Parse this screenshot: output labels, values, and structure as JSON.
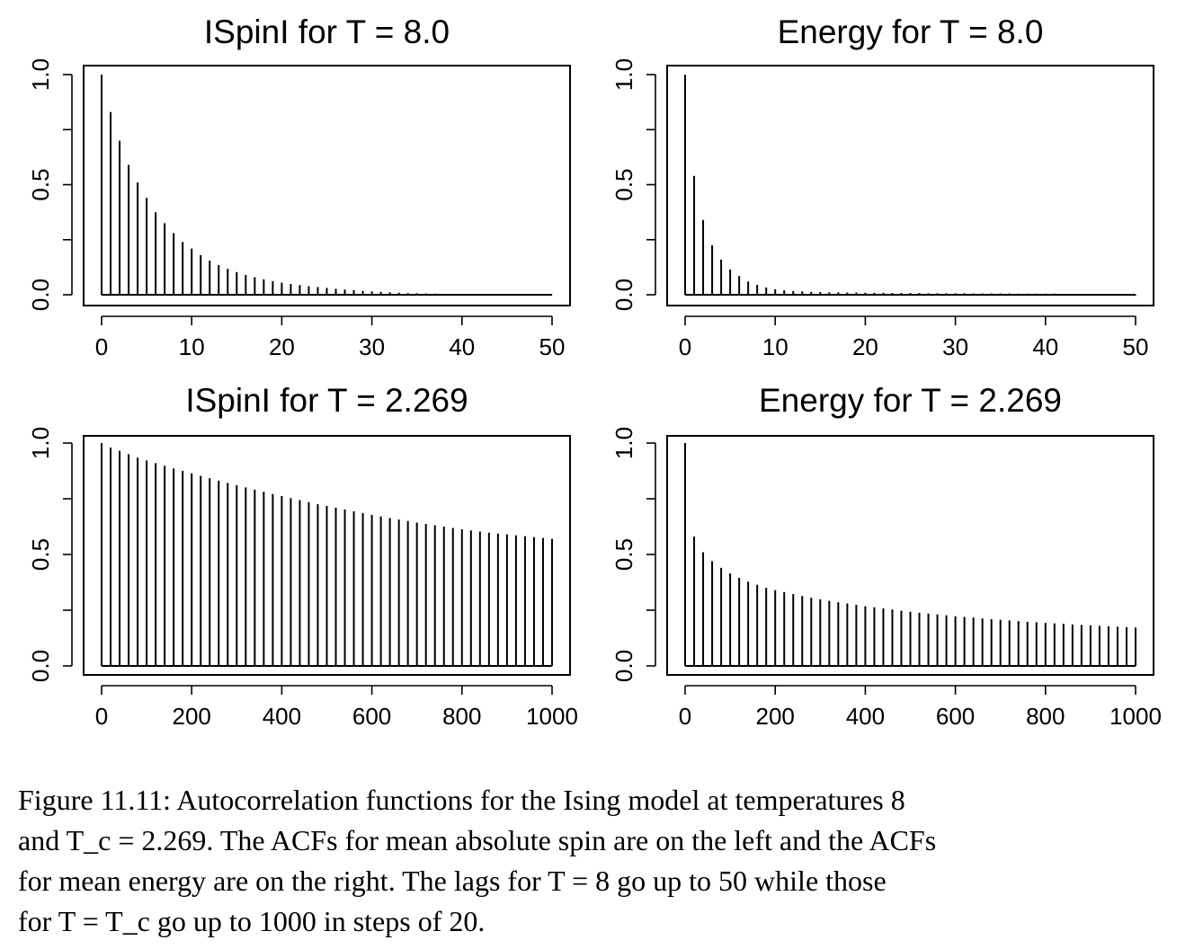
{
  "chart_data": [
    {
      "type": "bar",
      "title": "ISpinI for T = 8.0",
      "xlabel": "",
      "ylabel": "",
      "xlim": [
        0,
        50
      ],
      "ylim": [
        0,
        1
      ],
      "x_ticks": [
        "0",
        "10",
        "20",
        "30",
        "40",
        "50"
      ],
      "y_ticks": [
        "0.0",
        "0.5",
        "1.0"
      ],
      "grid": false,
      "x": [
        0,
        1,
        2,
        3,
        4,
        5,
        6,
        7,
        8,
        9,
        10,
        11,
        12,
        13,
        14,
        15,
        16,
        17,
        18,
        19,
        20,
        21,
        22,
        23,
        24,
        25,
        26,
        27,
        28,
        29,
        30,
        31,
        32,
        33,
        34,
        35,
        36,
        37,
        38,
        39,
        40,
        41,
        42,
        43,
        44,
        45,
        46,
        47,
        48,
        49,
        50
      ],
      "values": [
        1.0,
        0.83,
        0.7,
        0.59,
        0.51,
        0.44,
        0.375,
        0.325,
        0.28,
        0.24,
        0.21,
        0.18,
        0.155,
        0.135,
        0.118,
        0.103,
        0.09,
        0.08,
        0.07,
        0.062,
        0.055,
        0.049,
        0.044,
        0.039,
        0.035,
        0.031,
        0.027,
        0.024,
        0.021,
        0.018,
        0.015,
        0.013,
        0.011,
        0.009,
        0.008,
        0.007,
        0.006,
        0.005,
        0.004,
        0.004,
        0.003,
        0.003,
        0.002,
        0.002,
        0.002,
        0.001,
        0.001,
        0.001,
        0.001,
        0.001,
        0.001
      ]
    },
    {
      "type": "bar",
      "title": "Energy for T = 8.0",
      "xlabel": "",
      "ylabel": "",
      "xlim": [
        0,
        50
      ],
      "ylim": [
        0,
        1
      ],
      "x_ticks": [
        "0",
        "10",
        "20",
        "30",
        "40",
        "50"
      ],
      "y_ticks": [
        "0.0",
        "0.5",
        "1.0"
      ],
      "grid": false,
      "x": [
        0,
        1,
        2,
        3,
        4,
        5,
        6,
        7,
        8,
        9,
        10,
        11,
        12,
        13,
        14,
        15,
        16,
        17,
        18,
        19,
        20,
        21,
        22,
        23,
        24,
        25,
        26,
        27,
        28,
        29,
        30,
        31,
        32,
        33,
        34,
        35,
        36,
        37,
        38,
        39,
        40,
        41,
        42,
        43,
        44,
        45,
        46,
        47,
        48,
        49,
        50
      ],
      "values": [
        1.0,
        0.54,
        0.34,
        0.225,
        0.16,
        0.115,
        0.085,
        0.06,
        0.045,
        0.033,
        0.025,
        0.02,
        0.017,
        0.015,
        0.013,
        0.012,
        0.011,
        0.011,
        0.01,
        0.01,
        0.009,
        0.009,
        0.009,
        0.008,
        0.008,
        0.008,
        0.008,
        0.007,
        0.007,
        0.007,
        0.007,
        0.007,
        0.006,
        0.006,
        0.006,
        0.006,
        0.006,
        0.005,
        0.005,
        0.005,
        0.005,
        0.005,
        0.004,
        0.004,
        0.004,
        0.003,
        0.003,
        0.002,
        0.002,
        -0.002,
        -0.003
      ]
    },
    {
      "type": "bar",
      "title": "ISpinI for T = 2.269",
      "xlabel": "",
      "ylabel": "",
      "xlim": [
        0,
        1000
      ],
      "ylim": [
        0,
        1
      ],
      "x_ticks": [
        "0",
        "200",
        "400",
        "600",
        "800",
        "1000"
      ],
      "y_ticks": [
        "0.0",
        "0.5",
        "1.0"
      ],
      "grid": false,
      "x": [
        0,
        20,
        40,
        60,
        80,
        100,
        120,
        140,
        160,
        180,
        200,
        220,
        240,
        260,
        280,
        300,
        320,
        340,
        360,
        380,
        400,
        420,
        440,
        460,
        480,
        500,
        520,
        540,
        560,
        580,
        600,
        620,
        640,
        660,
        680,
        700,
        720,
        740,
        760,
        780,
        800,
        820,
        840,
        860,
        880,
        900,
        920,
        940,
        960,
        980,
        1000
      ],
      "values": [
        1.0,
        0.98,
        0.965,
        0.95,
        0.935,
        0.922,
        0.91,
        0.898,
        0.886,
        0.875,
        0.864,
        0.853,
        0.842,
        0.831,
        0.821,
        0.811,
        0.801,
        0.791,
        0.781,
        0.771,
        0.762,
        0.753,
        0.744,
        0.735,
        0.726,
        0.718,
        0.71,
        0.702,
        0.694,
        0.686,
        0.678,
        0.671,
        0.664,
        0.657,
        0.65,
        0.643,
        0.637,
        0.631,
        0.625,
        0.619,
        0.613,
        0.608,
        0.603,
        0.598,
        0.594,
        0.59,
        0.586,
        0.582,
        0.578,
        0.574,
        0.57
      ]
    },
    {
      "type": "bar",
      "title": "Energy for T = 2.269",
      "xlabel": "",
      "ylabel": "",
      "xlim": [
        0,
        1000
      ],
      "ylim": [
        0,
        1
      ],
      "x_ticks": [
        "0",
        "200",
        "400",
        "600",
        "800",
        "1000"
      ],
      "y_ticks": [
        "0.0",
        "0.5",
        "1.0"
      ],
      "grid": false,
      "x": [
        0,
        20,
        40,
        60,
        80,
        100,
        120,
        140,
        160,
        180,
        200,
        220,
        240,
        260,
        280,
        300,
        320,
        340,
        360,
        380,
        400,
        420,
        440,
        460,
        480,
        500,
        520,
        540,
        560,
        580,
        600,
        620,
        640,
        660,
        680,
        700,
        720,
        740,
        760,
        780,
        800,
        820,
        840,
        860,
        880,
        900,
        920,
        940,
        960,
        980,
        1000
      ],
      "values": [
        1.0,
        0.58,
        0.51,
        0.47,
        0.44,
        0.415,
        0.395,
        0.378,
        0.364,
        0.351,
        0.34,
        0.331,
        0.322,
        0.314,
        0.306,
        0.299,
        0.292,
        0.286,
        0.28,
        0.274,
        0.268,
        0.263,
        0.258,
        0.253,
        0.248,
        0.243,
        0.239,
        0.235,
        0.231,
        0.227,
        0.223,
        0.22,
        0.217,
        0.213,
        0.21,
        0.207,
        0.204,
        0.201,
        0.198,
        0.196,
        0.193,
        0.191,
        0.189,
        0.186,
        0.184,
        0.182,
        0.18,
        0.178,
        0.176,
        0.174,
        0.172
      ]
    }
  ],
  "caption": {
    "line1": "Figure 11.11: Autocorrelation functions for the Ising model at temperatures 8",
    "line2": "and T_c = 2.269. The ACFs for mean absolute spin are on the left and the ACFs",
    "line3": "for mean energy are on the right. The lags for T = 8 go up to 50 while those",
    "line4": "for T = T_c go up to 1000 in steps of 20."
  }
}
